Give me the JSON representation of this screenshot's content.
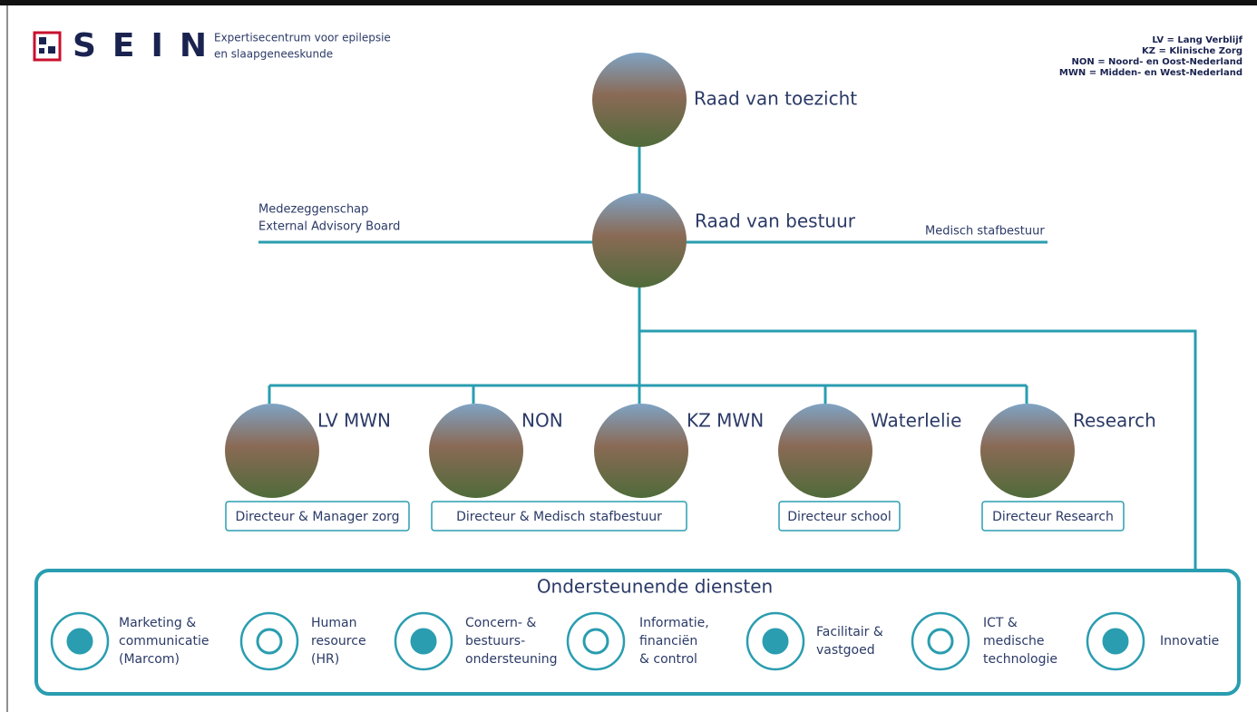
{
  "header": {
    "logo": "SEIN",
    "tagline": [
      "Expertisecentrum voor epilepsie",
      "en slaapgeneeskunde"
    ]
  },
  "legend": [
    "LV = Lang Verblijf",
    "KZ = Klinische Zorg",
    "NON = Noord- en Oost-Nederland",
    "MWN = Midden- en West-Nederland"
  ],
  "top": {
    "label": "Raad van toezicht"
  },
  "board": {
    "label": "Raad van bestuur",
    "left": [
      "Medezeggenschap",
      "External Advisory Board"
    ],
    "right": "Medisch stafbestuur"
  },
  "units": [
    {
      "label": "LV MWN"
    },
    {
      "label": "NON"
    },
    {
      "label": "KZ MWN"
    },
    {
      "label": "Waterlelie"
    },
    {
      "label": "Research"
    }
  ],
  "directors": [
    "Directeur & Manager zorg",
    "Directeur & Medisch stafbestuur",
    "Directeur school",
    "Directeur Research"
  ],
  "services": {
    "title": "Ondersteunende diensten",
    "items": [
      [
        "Marketing &",
        "communicatie",
        "(Marcom)"
      ],
      [
        "Human",
        "resource",
        "(HR)"
      ],
      [
        "Concern- &",
        "bestuurs-",
        "ondersteuning"
      ],
      [
        "Informatie,",
        "financiën",
        "& control"
      ],
      [
        "Facilitair &",
        "vastgoed"
      ],
      [
        "ICT &",
        "medische",
        "technologie"
      ],
      [
        "Innovatie"
      ]
    ]
  }
}
